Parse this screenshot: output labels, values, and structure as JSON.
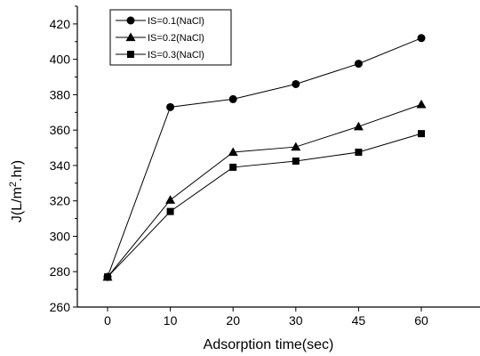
{
  "chart_data": {
    "type": "line",
    "categories": [
      "0",
      "10",
      "20",
      "30",
      "45",
      "60"
    ],
    "xlabel": "Adsorption time(sec)",
    "ylabel_parts": [
      "J(L/m",
      "2",
      ".hr)"
    ],
    "ylim": [
      260,
      430
    ],
    "yticks": [
      260,
      280,
      300,
      320,
      340,
      360,
      380,
      400,
      420
    ],
    "legend_position": "top-left",
    "grid": false,
    "series": [
      {
        "name": "IS=0.1(NaCl)",
        "marker": "circle",
        "values": [
          277,
          373,
          377.5,
          386,
          397.5,
          412
        ]
      },
      {
        "name": "IS=0.2(NaCl)",
        "marker": "triangle",
        "values": [
          277,
          320.5,
          347.5,
          350.5,
          362,
          374.5
        ]
      },
      {
        "name": "IS=0.3(NaCl)",
        "marker": "square",
        "values": [
          277,
          314,
          339,
          342.5,
          347.5,
          358
        ]
      }
    ]
  }
}
